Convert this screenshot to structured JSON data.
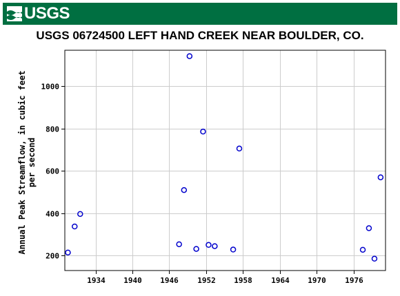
{
  "banner": {
    "logo_text": "USGS",
    "logo_icon": "usgs-wave-icon",
    "color": "#006f41"
  },
  "chart_data": {
    "type": "scatter",
    "title": "USGS 06724500 LEFT HAND CREEK NEAR BOULDER, CO.",
    "ylabel_line1": "Annual Peak Streamflow, in cubic feet",
    "ylabel_line2": "per second",
    "xlabel": "",
    "xlim": [
      1929.0,
      1981.2
    ],
    "ylim": [
      130,
      1170
    ],
    "x_ticks": [
      1934,
      1940,
      1946,
      1952,
      1958,
      1964,
      1970,
      1976
    ],
    "y_ticks": [
      200,
      400,
      600,
      800,
      1000
    ],
    "grid": true,
    "marker": "open-circle",
    "marker_color": "#0000cc",
    "points": [
      {
        "x": 1929.5,
        "y": 215
      },
      {
        "x": 1930.6,
        "y": 338
      },
      {
        "x": 1931.5,
        "y": 397
      },
      {
        "x": 1947.6,
        "y": 254
      },
      {
        "x": 1948.4,
        "y": 510
      },
      {
        "x": 1949.3,
        "y": 1142
      },
      {
        "x": 1950.4,
        "y": 232
      },
      {
        "x": 1951.5,
        "y": 786
      },
      {
        "x": 1952.4,
        "y": 251
      },
      {
        "x": 1953.4,
        "y": 245
      },
      {
        "x": 1956.4,
        "y": 229
      },
      {
        "x": 1957.4,
        "y": 706
      },
      {
        "x": 1977.5,
        "y": 228
      },
      {
        "x": 1978.5,
        "y": 330
      },
      {
        "x": 1979.4,
        "y": 186
      },
      {
        "x": 1980.4,
        "y": 570
      }
    ]
  }
}
